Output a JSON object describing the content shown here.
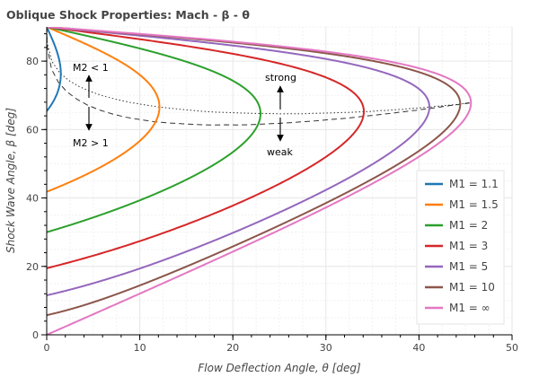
{
  "chart_data": {
    "type": "line",
    "title": "Oblique Shock Properties: Mach - β - θ",
    "xlabel": "Flow Deflection Angle, θ [deg]",
    "ylabel": "Shock Wave Angle, β [deg]",
    "xlim": [
      0,
      50
    ],
    "ylim": [
      0,
      90
    ],
    "xticks": [
      0,
      10,
      20,
      30,
      40,
      50
    ],
    "yticks": [
      0,
      20,
      40,
      60,
      80
    ],
    "grid": true,
    "legend_position": "bottom-right",
    "gamma": 1.4,
    "series": [
      {
        "name": "M1 = 1.1",
        "mach": 1.1,
        "color": "#1f77b4"
      },
      {
        "name": "M1 = 1.5",
        "mach": 1.5,
        "color": "#ff7f0e"
      },
      {
        "name": "M1 = 2",
        "mach": 2,
        "color": "#2ca02c"
      },
      {
        "name": "M1 = 3",
        "mach": 3,
        "color": "#d62728"
      },
      {
        "name": "M1 = 5",
        "mach": 5,
        "color": "#9467bd"
      },
      {
        "name": "M1 = 10",
        "mach": 10,
        "color": "#8c564b"
      },
      {
        "name": "M1 = ∞",
        "mach": "inf",
        "color": "#e377c2"
      }
    ],
    "reference_lines": [
      {
        "style": "dashed",
        "meaning": "M2 = 1"
      },
      {
        "style": "dotted",
        "meaning": "maximum deflection"
      }
    ],
    "annotations": {
      "m2_less": "M2 < 1",
      "m2_greater": "M2 > 1",
      "strong": "strong",
      "weak": "weak"
    }
  }
}
